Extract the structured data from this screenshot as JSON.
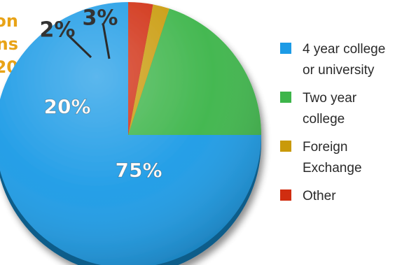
{
  "title_fragment": [
    "on",
    "ns",
    "20"
  ],
  "colors": {
    "title": "#e8a317",
    "four_year": "#1c9be6",
    "two_year": "#3db54a",
    "foreign": "#c99a0a",
    "other": "#d02d10"
  },
  "chart_data": {
    "type": "pie",
    "title": "",
    "categories": [
      "4 year college or university",
      "Two year college",
      "Foreign Exchange",
      "Other"
    ],
    "values": [
      75,
      20,
      2,
      3
    ],
    "data_labels": [
      "75%",
      "20%",
      "2%",
      "3%"
    ],
    "legend_labels": [
      "4 year college\nor university",
      "Two year\ncollege",
      "Foreign\nExchange",
      "Other"
    ],
    "legend_position": "right",
    "grid": false
  }
}
